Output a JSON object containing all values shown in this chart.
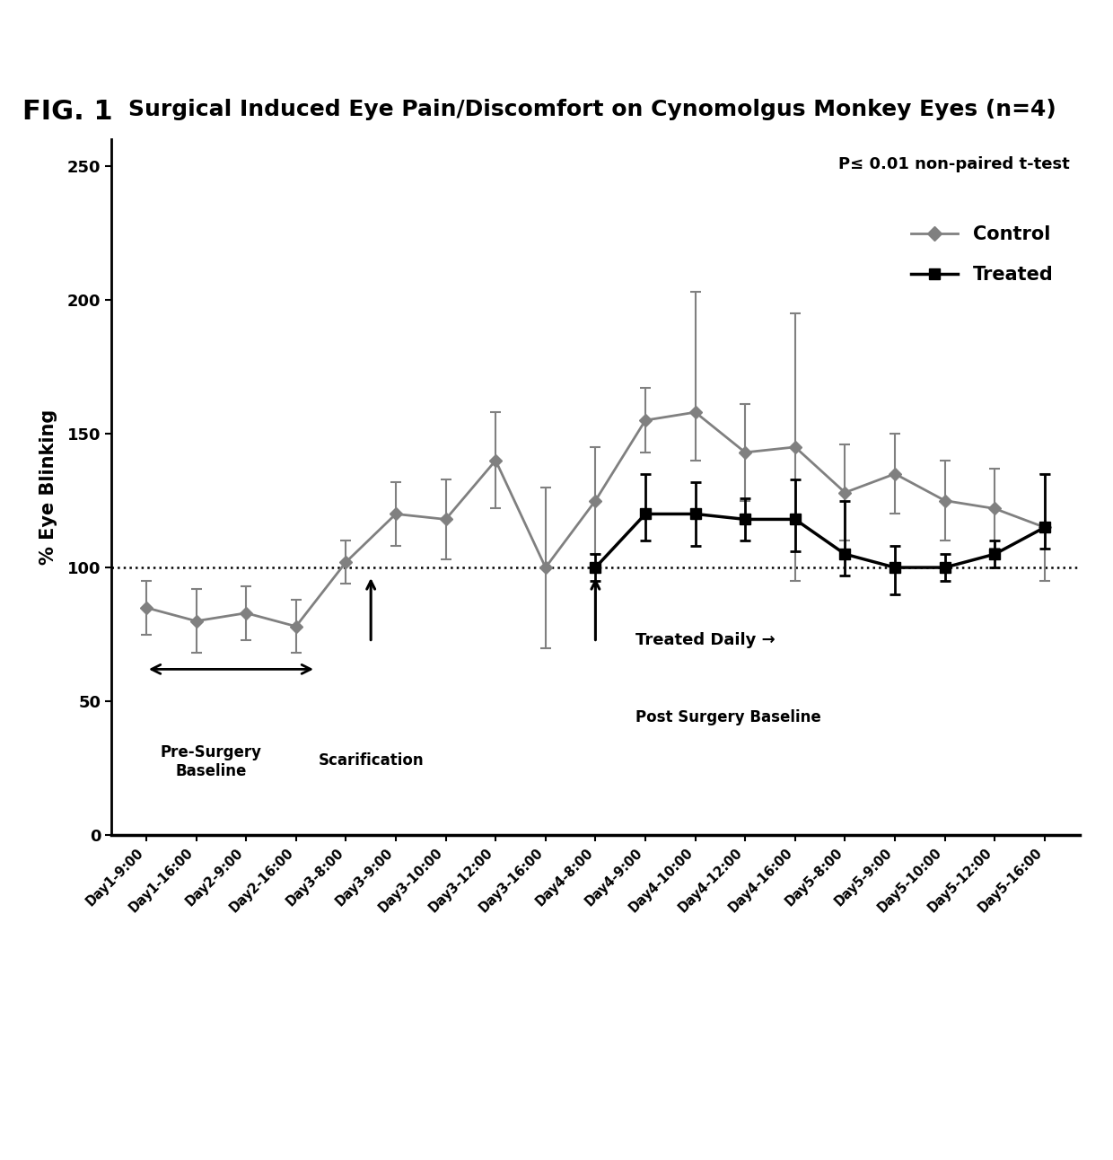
{
  "title_fig": "FIG. 1",
  "title_main": "Surgical Induced Eye Pain/Discomfort on Cynomolgus Monkey Eyes (n=4)",
  "ylabel": "% Eye Blinking",
  "pvalue_text": "P≤ 0.01 non-paired t-test",
  "legend_control": "Control",
  "legend_treated": "Treated",
  "xticklabels": [
    "Day1-9:00",
    "Day1-16:00",
    "Day2-9:00",
    "Day2-16:00",
    "Day3-8:00",
    "Day3-9:00",
    "Day3-10:00",
    "Day3-12:00",
    "Day3-16:00",
    "Day4-8:00",
    "Day4-9:00",
    "Day4-10:00",
    "Day4-12:00",
    "Day4-16:00",
    "Day5-8:00",
    "Day5-9:00",
    "Day5-10:00",
    "Day5-12:00",
    "Day5-16:00"
  ],
  "control_y": [
    85,
    80,
    83,
    78,
    102,
    120,
    118,
    140,
    100,
    125,
    155,
    158,
    143,
    145,
    128,
    135,
    125,
    122,
    115
  ],
  "control_yerr_lo": [
    10,
    12,
    10,
    10,
    8,
    12,
    15,
    18,
    30,
    20,
    12,
    18,
    18,
    50,
    18,
    15,
    15,
    15,
    20
  ],
  "control_yerr_hi": [
    10,
    12,
    10,
    10,
    8,
    12,
    15,
    18,
    30,
    20,
    12,
    45,
    18,
    50,
    18,
    15,
    15,
    15,
    20
  ],
  "treated_y": [
    null,
    null,
    null,
    null,
    null,
    null,
    null,
    null,
    null,
    100,
    120,
    120,
    118,
    118,
    105,
    100,
    100,
    105,
    115
  ],
  "treated_yerr_lo": [
    null,
    null,
    null,
    null,
    null,
    null,
    null,
    null,
    null,
    5,
    10,
    12,
    8,
    12,
    8,
    10,
    5,
    5,
    8
  ],
  "treated_yerr_hi": [
    null,
    null,
    null,
    null,
    null,
    null,
    null,
    null,
    null,
    5,
    15,
    12,
    8,
    15,
    20,
    8,
    5,
    5,
    20
  ],
  "ylim": [
    0,
    260
  ],
  "yticks": [
    0,
    50,
    100,
    150,
    200,
    250
  ],
  "dotted_line_y": 100,
  "control_color": "#808080",
  "treated_color": "#000000",
  "background_color": "#ffffff"
}
